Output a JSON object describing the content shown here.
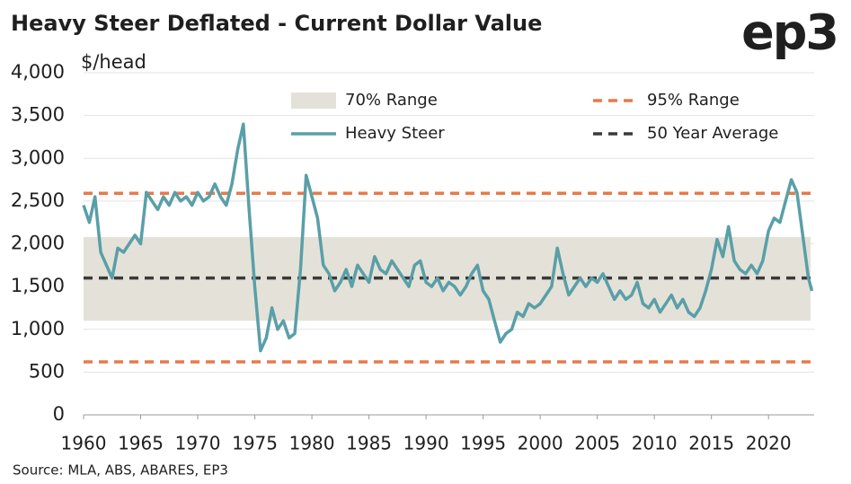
{
  "chart_data": {
    "type": "line",
    "title": "Heavy Steer Deflated - Current Dollar Value",
    "y_label": "$/head",
    "logo": "ep3",
    "source": "Source: MLA, ABS, ABARES, EP3",
    "xlim": [
      1960,
      2024
    ],
    "xticks": [
      1960,
      1965,
      1970,
      1975,
      1980,
      1985,
      1990,
      1995,
      2000,
      2005,
      2010,
      2015,
      2020
    ],
    "ylim": [
      0,
      4000
    ],
    "yticks": [
      0,
      500,
      {
        "value": 1000,
        "label": "1,000"
      },
      {
        "value": 1500,
        "label": "1,500"
      },
      {
        "value": 2000,
        "label": "2,000"
      },
      {
        "value": 2500,
        "label": "2,500"
      },
      {
        "value": 3000,
        "label": "3,000"
      },
      {
        "value": 3500,
        "label": "3,500"
      },
      {
        "value": 4000,
        "label": "4,000"
      }
    ],
    "grid": true,
    "bands": [
      {
        "name": "70% Range",
        "color": "#e4e2d8",
        "values": [
          1100,
          2080
        ]
      }
    ],
    "ref_lines": [
      {
        "name": "95% Range",
        "color": "#e8794a",
        "values": [
          620,
          2590
        ]
      },
      {
        "name": "50 Year Average",
        "color": "#3a3a3a",
        "values": [
          1600
        ]
      }
    ],
    "x": [
      1960,
      1960.5,
      1961,
      1961.5,
      1962,
      1962.5,
      1963,
      1963.5,
      1964,
      1964.5,
      1965,
      1965.5,
      1966,
      1966.5,
      1967,
      1967.5,
      1968,
      1968.5,
      1969,
      1969.5,
      1970,
      1970.5,
      1971,
      1971.5,
      1972,
      1972.5,
      1973,
      1973.5,
      1974,
      1974.5,
      1975,
      1975.5,
      1976,
      1976.5,
      1977,
      1977.5,
      1978,
      1978.5,
      1979,
      1979.5,
      1980,
      1980.5,
      1981,
      1981.5,
      1982,
      1982.5,
      1983,
      1983.5,
      1984,
      1984.5,
      1985,
      1985.5,
      1986,
      1986.5,
      1987,
      1987.5,
      1988,
      1988.5,
      1989,
      1989.5,
      1990,
      1990.5,
      1991,
      1991.5,
      1992,
      1992.5,
      1993,
      1993.5,
      1994,
      1994.5,
      1995,
      1995.5,
      1996,
      1996.5,
      1997,
      1997.5,
      1998,
      1998.5,
      1999,
      1999.5,
      2000,
      2000.5,
      2001,
      2001.5,
      2002,
      2002.5,
      2003,
      2003.5,
      2004,
      2004.5,
      2005,
      2005.5,
      2006,
      2006.5,
      2007,
      2007.5,
      2008,
      2008.5,
      2009,
      2009.5,
      2010,
      2010.5,
      2011,
      2011.5,
      2012,
      2012.5,
      2013,
      2013.5,
      2014,
      2014.5,
      2015,
      2015.5,
      2016,
      2016.5,
      2017,
      2017.5,
      2018,
      2018.5,
      2019,
      2019.5,
      2020,
      2020.5,
      2021,
      2021.5,
      2022,
      2022.5,
      2023,
      2023.5,
      2023.8
    ],
    "series": [
      {
        "name": "Heavy Steer",
        "color": "#5a9fa8",
        "values": [
          2450,
          2250,
          2550,
          1900,
          1750,
          1600,
          1950,
          1900,
          2000,
          2100,
          2000,
          2600,
          2500,
          2400,
          2550,
          2450,
          2600,
          2500,
          2550,
          2450,
          2600,
          2500,
          2550,
          2700,
          2550,
          2450,
          2700,
          3100,
          3400,
          2400,
          1500,
          750,
          900,
          1250,
          1000,
          1100,
          900,
          950,
          1700,
          2800,
          2550,
          2300,
          1750,
          1650,
          1450,
          1550,
          1700,
          1500,
          1750,
          1650,
          1550,
          1850,
          1700,
          1650,
          1800,
          1700,
          1600,
          1500,
          1750,
          1800,
          1550,
          1500,
          1600,
          1450,
          1550,
          1500,
          1400,
          1500,
          1650,
          1750,
          1450,
          1350,
          1100,
          850,
          950,
          1000,
          1200,
          1150,
          1300,
          1250,
          1300,
          1400,
          1500,
          1950,
          1650,
          1400,
          1500,
          1600,
          1500,
          1600,
          1550,
          1650,
          1500,
          1350,
          1450,
          1350,
          1400,
          1550,
          1300,
          1250,
          1350,
          1200,
          1300,
          1400,
          1250,
          1350,
          1200,
          1150,
          1250,
          1450,
          1700,
          2050,
          1850,
          2200,
          1800,
          1700,
          1650,
          1750,
          1650,
          1800,
          2150,
          2300,
          2250,
          2500,
          2750,
          2600,
          2100,
          1600,
          1450
        ]
      }
    ]
  }
}
